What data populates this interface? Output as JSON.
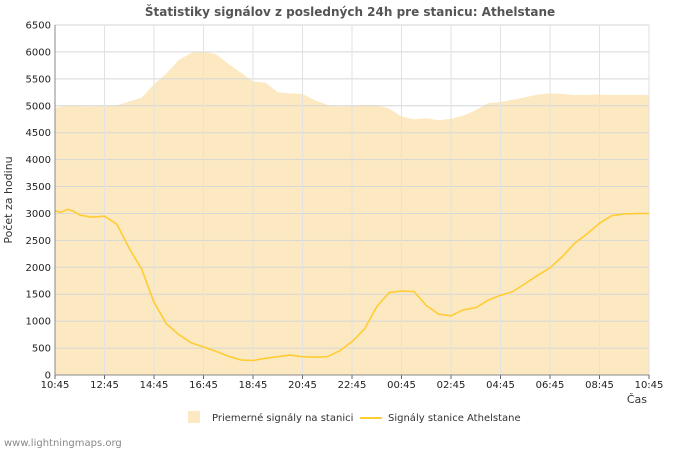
{
  "chart_data": {
    "type": "area",
    "title": "Štatistiky signálov z posledných 24h pre stanicu: Athelstane",
    "xlabel": "Čas",
    "ylabel": "Počet za hodinu",
    "ylim": [
      0,
      6500
    ],
    "y_ticks": [
      0,
      500,
      1000,
      1500,
      2000,
      2500,
      3000,
      3500,
      4000,
      4500,
      5000,
      5500,
      6000,
      6500
    ],
    "x_ticks": [
      "10:45",
      "12:45",
      "14:45",
      "16:45",
      "18:45",
      "20:45",
      "22:45",
      "00:45",
      "02:45",
      "04:45",
      "06:45",
      "08:45",
      "10:45"
    ],
    "x_range_hours": [
      0,
      24
    ],
    "grid": true,
    "legend_position": "bottom",
    "series": [
      {
        "name": "Priemerné signály na stanici",
        "kind": "area",
        "color": "#FCE9C2",
        "x": [
          0,
          0.5,
          1,
          1.5,
          2,
          2.5,
          3,
          3.5,
          4,
          4.5,
          5,
          5.5,
          6,
          6.5,
          7,
          7.5,
          8,
          8.5,
          9,
          9.5,
          10,
          10.5,
          11,
          11.5,
          12,
          12.5,
          13,
          13.5,
          14,
          14.5,
          15,
          15.5,
          16,
          16.5,
          17,
          17.5,
          18,
          18.5,
          19,
          19.5,
          20,
          20.5,
          21,
          21.5,
          22,
          22.5,
          23,
          23.5,
          24
        ],
        "values": [
          4960,
          5010,
          4990,
          4985,
          5000,
          5010,
          5080,
          5150,
          5400,
          5600,
          5850,
          5980,
          6010,
          5960,
          5780,
          5620,
          5450,
          5430,
          5250,
          5230,
          5220,
          5100,
          5020,
          4980,
          5000,
          5020,
          5010,
          4950,
          4800,
          4750,
          4770,
          4730,
          4760,
          4820,
          4920,
          5050,
          5070,
          5110,
          5160,
          5210,
          5230,
          5220,
          5200,
          5200,
          5210,
          5200,
          5200,
          5200,
          5200
        ]
      },
      {
        "name": "Signály stanice Athelstane",
        "kind": "line",
        "color": "#FFCC33",
        "x": [
          0,
          0.25,
          0.5,
          0.75,
          1,
          1.5,
          2,
          2.5,
          3,
          3.5,
          4,
          4.5,
          5,
          5.5,
          6,
          6.5,
          7,
          7.5,
          8,
          8.5,
          9,
          9.5,
          10,
          10.5,
          11,
          11.5,
          12,
          12.5,
          13,
          13.5,
          14,
          14.5,
          15,
          15.5,
          16,
          16.5,
          17,
          17.5,
          18,
          18.5,
          19,
          19.5,
          20,
          20.5,
          21,
          21.5,
          22,
          22.5,
          23,
          23.5,
          24
        ],
        "values": [
          3050,
          3020,
          3080,
          3040,
          2970,
          2930,
          2950,
          2800,
          2350,
          1970,
          1350,
          950,
          750,
          600,
          520,
          440,
          350,
          280,
          270,
          310,
          340,
          370,
          340,
          330,
          340,
          450,
          620,
          850,
          1270,
          1530,
          1560,
          1550,
          1290,
          1130,
          1100,
          1210,
          1250,
          1390,
          1480,
          1550,
          1700,
          1850,
          1990,
          2200,
          2450,
          2620,
          2820,
          2960,
          2990,
          3000,
          3000
        ]
      }
    ]
  },
  "footer": {
    "watermark": "www.lightningmaps.org"
  }
}
